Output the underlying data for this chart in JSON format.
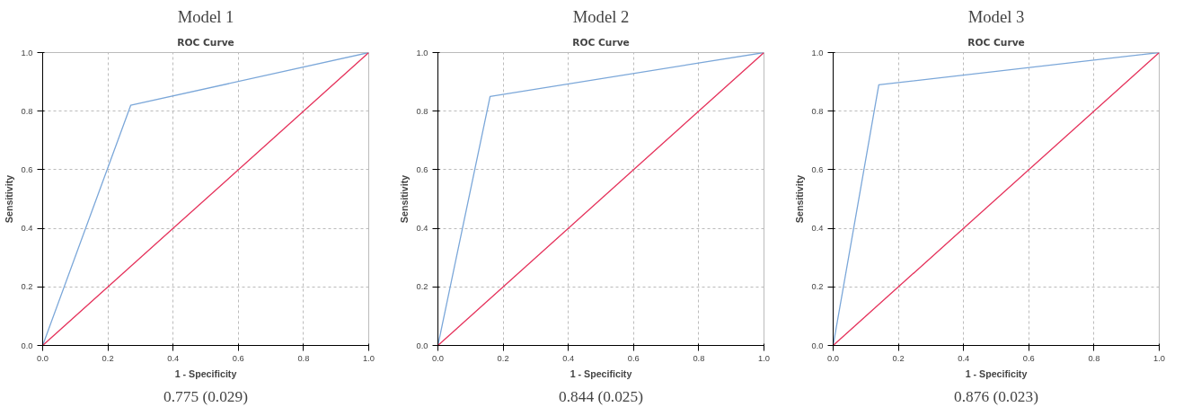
{
  "chart_data": [
    {
      "type": "line",
      "title": "Model 1",
      "subtitle": "ROC Curve",
      "xlabel": "1 - Specificity",
      "ylabel": "Sensitivity",
      "annotations": [
        "0.775 (0.029)"
      ],
      "xlim": [
        0,
        1
      ],
      "ylim": [
        0,
        1
      ],
      "xticks": [
        {
          "value": 0,
          "label": "0.0"
        },
        {
          "value": 0.2,
          "label": "0.2"
        },
        {
          "value": 0.4,
          "label": "0.4"
        },
        {
          "value": 0.6,
          "label": "0.6"
        },
        {
          "value": 0.8,
          "label": "0.8"
        },
        {
          "value": 1,
          "label": "1.0"
        }
      ],
      "yticks": [
        {
          "value": 0,
          "label": "0.0"
        },
        {
          "value": 0.2,
          "label": "0.2"
        },
        {
          "value": 0.4,
          "label": "0.4"
        },
        {
          "value": 0.6,
          "label": "0.6"
        },
        {
          "value": 0.8,
          "label": "0.8"
        },
        {
          "value": 1,
          "label": "1.0"
        }
      ],
      "grid": true,
      "series": [
        {
          "color": "#7ba7d9",
          "x": [
            0,
            0.27,
            1
          ],
          "values": [
            0,
            0.82,
            1
          ]
        },
        {
          "color": "#e5305a",
          "x": [
            0,
            1
          ],
          "values": [
            0,
            1
          ]
        }
      ]
    },
    {
      "type": "line",
      "title": "Model 2",
      "subtitle": "ROC Curve",
      "xlabel": "1 - Specificity",
      "ylabel": "Sensitivity",
      "annotations": [
        "0.844 (0.025)"
      ],
      "xlim": [
        0,
        1
      ],
      "ylim": [
        0,
        1
      ],
      "xticks": [
        {
          "value": 0,
          "label": "0.0"
        },
        {
          "value": 0.2,
          "label": "0.2"
        },
        {
          "value": 0.4,
          "label": "0.4"
        },
        {
          "value": 0.6,
          "label": "0.6"
        },
        {
          "value": 0.8,
          "label": "0.8"
        },
        {
          "value": 1,
          "label": "1.0"
        }
      ],
      "yticks": [
        {
          "value": 0,
          "label": "0.0"
        },
        {
          "value": 0.2,
          "label": "0.2"
        },
        {
          "value": 0.4,
          "label": "0.4"
        },
        {
          "value": 0.6,
          "label": "0.6"
        },
        {
          "value": 0.8,
          "label": "0.8"
        },
        {
          "value": 1,
          "label": "1.0"
        }
      ],
      "grid": true,
      "series": [
        {
          "color": "#7ba7d9",
          "x": [
            0,
            0.16,
            1
          ],
          "values": [
            0,
            0.85,
            1
          ]
        },
        {
          "color": "#e5305a",
          "x": [
            0,
            1
          ],
          "values": [
            0,
            1
          ]
        }
      ]
    },
    {
      "type": "line",
      "title": "Model 3",
      "subtitle": "ROC Curve",
      "xlabel": "1 - Specificity",
      "ylabel": "Sensitivity",
      "annotations": [
        "0.876 (0.023)"
      ],
      "xlim": [
        0,
        1
      ],
      "ylim": [
        0,
        1
      ],
      "xticks": [
        {
          "value": 0,
          "label": "0.0"
        },
        {
          "value": 0.2,
          "label": "0.2"
        },
        {
          "value": 0.4,
          "label": "0.4"
        },
        {
          "value": 0.6,
          "label": "0.6"
        },
        {
          "value": 0.8,
          "label": "0.8"
        },
        {
          "value": 1,
          "label": "1.0"
        }
      ],
      "yticks": [
        {
          "value": 0,
          "label": "0.0"
        },
        {
          "value": 0.2,
          "label": "0.2"
        },
        {
          "value": 0.4,
          "label": "0.4"
        },
        {
          "value": 0.6,
          "label": "0.6"
        },
        {
          "value": 0.8,
          "label": "0.8"
        },
        {
          "value": 1,
          "label": "1.0"
        }
      ],
      "grid": true,
      "series": [
        {
          "color": "#7ba7d9",
          "x": [
            0,
            0.14,
            1
          ],
          "values": [
            0,
            0.89,
            1
          ]
        },
        {
          "color": "#e5305a",
          "x": [
            0,
            1
          ],
          "values": [
            0,
            1
          ]
        }
      ]
    }
  ]
}
